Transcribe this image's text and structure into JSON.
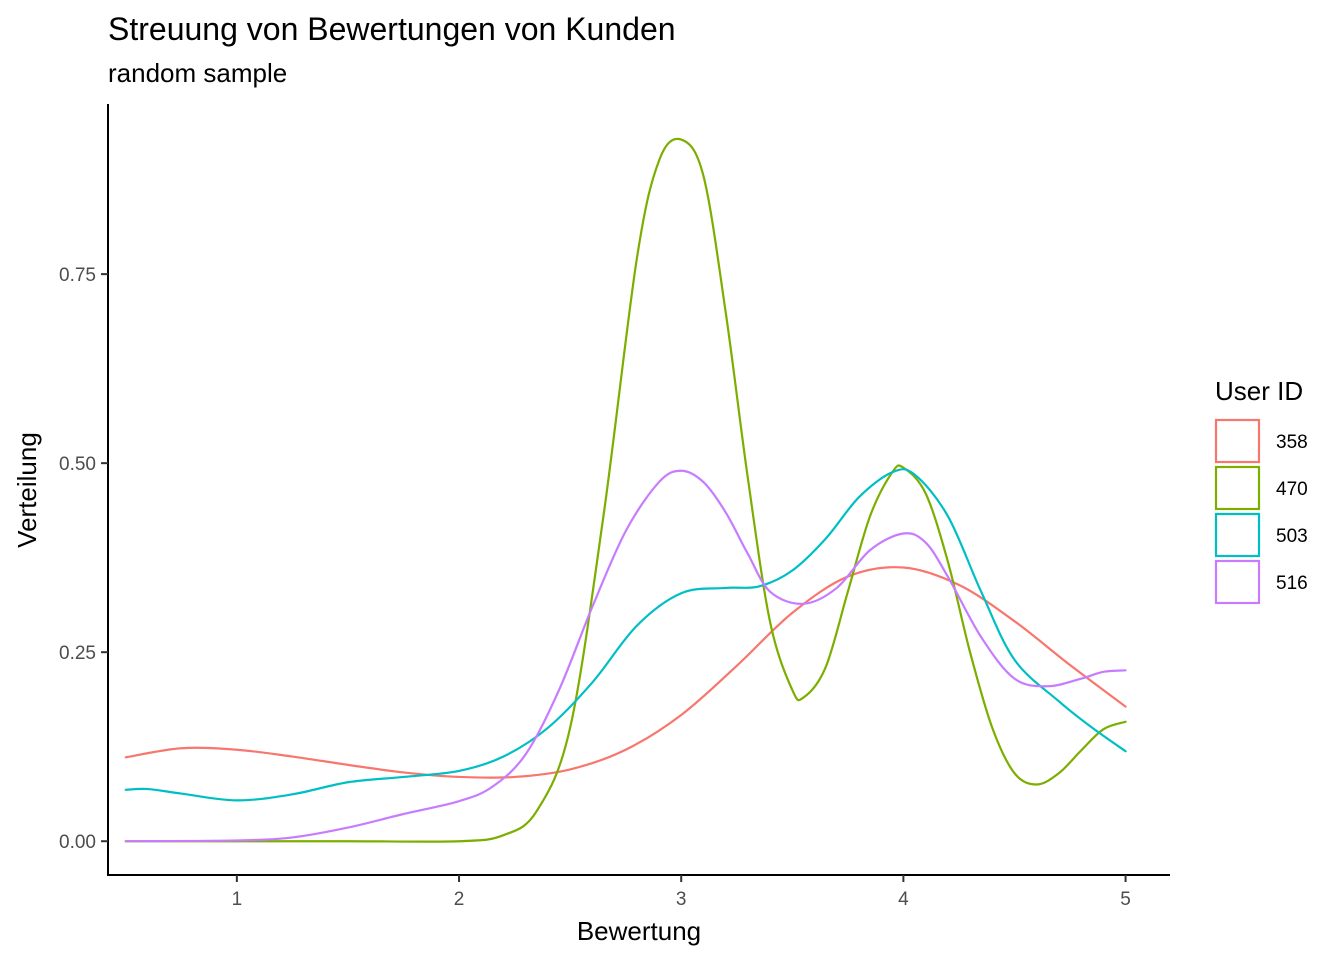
{
  "chart_data": {
    "type": "line",
    "title": "Streuung von Bewertungen von Kunden",
    "subtitle": "random sample",
    "xlabel": "Bewertung",
    "ylabel": "Verteilung",
    "xlim": [
      0.42,
      5.2
    ],
    "ylim": [
      -0.046,
      0.975
    ],
    "x_ticks": [
      1,
      2,
      3,
      4,
      5
    ],
    "x_tick_labels": [
      "1",
      "2",
      "3",
      "4",
      "5"
    ],
    "y_ticks": [
      0,
      0.25,
      0.5,
      0.75
    ],
    "y_tick_labels": [
      "0.00",
      "0.25",
      "0.50",
      "0.75"
    ],
    "grid": false,
    "legend": {
      "title": "User ID",
      "position": "right"
    },
    "series": [
      {
        "name": "358",
        "color": "#F8766D",
        "points": [
          [
            0.5,
            0.111
          ],
          [
            0.75,
            0.123
          ],
          [
            1.0,
            0.121
          ],
          [
            1.25,
            0.112
          ],
          [
            1.5,
            0.101
          ],
          [
            1.75,
            0.091
          ],
          [
            2.0,
            0.085
          ],
          [
            2.25,
            0.085
          ],
          [
            2.5,
            0.095
          ],
          [
            2.75,
            0.121
          ],
          [
            3.0,
            0.167
          ],
          [
            3.25,
            0.232
          ],
          [
            3.5,
            0.302
          ],
          [
            3.75,
            0.35
          ],
          [
            4.0,
            0.362
          ],
          [
            4.25,
            0.339
          ],
          [
            4.5,
            0.291
          ],
          [
            4.75,
            0.233
          ],
          [
            5.0,
            0.178
          ]
        ]
      },
      {
        "name": "470",
        "color": "#7CAE00",
        "points": [
          [
            0.5,
            0.0
          ],
          [
            1.0,
            0.0
          ],
          [
            1.5,
            0.0
          ],
          [
            2.0,
            0.0
          ],
          [
            2.2,
            0.008
          ],
          [
            2.35,
            0.04
          ],
          [
            2.5,
            0.15
          ],
          [
            2.65,
            0.43
          ],
          [
            2.8,
            0.77
          ],
          [
            2.9,
            0.9
          ],
          [
            3.0,
            0.928
          ],
          [
            3.1,
            0.88
          ],
          [
            3.2,
            0.7
          ],
          [
            3.3,
            0.48
          ],
          [
            3.4,
            0.29
          ],
          [
            3.5,
            0.2
          ],
          [
            3.55,
            0.19
          ],
          [
            3.65,
            0.23
          ],
          [
            3.75,
            0.33
          ],
          [
            3.85,
            0.43
          ],
          [
            3.95,
            0.488
          ],
          [
            4.0,
            0.494
          ],
          [
            4.1,
            0.46
          ],
          [
            4.2,
            0.37
          ],
          [
            4.3,
            0.25
          ],
          [
            4.4,
            0.15
          ],
          [
            4.5,
            0.09
          ],
          [
            4.6,
            0.075
          ],
          [
            4.7,
            0.09
          ],
          [
            4.8,
            0.12
          ],
          [
            4.9,
            0.148
          ],
          [
            5.0,
            0.158
          ]
        ]
      },
      {
        "name": "503",
        "color": "#00BFC4",
        "points": [
          [
            0.5,
            0.068
          ],
          [
            0.6,
            0.069
          ],
          [
            0.75,
            0.063
          ],
          [
            1.0,
            0.054
          ],
          [
            1.25,
            0.062
          ],
          [
            1.5,
            0.078
          ],
          [
            1.75,
            0.085
          ],
          [
            2.0,
            0.093
          ],
          [
            2.2,
            0.112
          ],
          [
            2.4,
            0.15
          ],
          [
            2.6,
            0.21
          ],
          [
            2.8,
            0.285
          ],
          [
            3.0,
            0.328
          ],
          [
            3.2,
            0.335
          ],
          [
            3.35,
            0.337
          ],
          [
            3.5,
            0.358
          ],
          [
            3.65,
            0.4
          ],
          [
            3.8,
            0.455
          ],
          [
            3.95,
            0.488
          ],
          [
            4.05,
            0.485
          ],
          [
            4.2,
            0.43
          ],
          [
            4.35,
            0.33
          ],
          [
            4.5,
            0.24
          ],
          [
            4.7,
            0.185
          ],
          [
            4.85,
            0.15
          ],
          [
            5.0,
            0.119
          ]
        ]
      },
      {
        "name": "516",
        "color": "#C77CFF",
        "points": [
          [
            0.5,
            0.0
          ],
          [
            1.0,
            0.001
          ],
          [
            1.25,
            0.005
          ],
          [
            1.5,
            0.018
          ],
          [
            1.75,
            0.036
          ],
          [
            2.0,
            0.053
          ],
          [
            2.15,
            0.072
          ],
          [
            2.3,
            0.115
          ],
          [
            2.45,
            0.2
          ],
          [
            2.6,
            0.31
          ],
          [
            2.75,
            0.41
          ],
          [
            2.9,
            0.475
          ],
          [
            3.0,
            0.49
          ],
          [
            3.1,
            0.475
          ],
          [
            3.2,
            0.435
          ],
          [
            3.3,
            0.38
          ],
          [
            3.4,
            0.33
          ],
          [
            3.55,
            0.314
          ],
          [
            3.7,
            0.335
          ],
          [
            3.85,
            0.385
          ],
          [
            4.0,
            0.407
          ],
          [
            4.1,
            0.395
          ],
          [
            4.2,
            0.35
          ],
          [
            4.35,
            0.27
          ],
          [
            4.5,
            0.215
          ],
          [
            4.65,
            0.205
          ],
          [
            4.8,
            0.215
          ],
          [
            4.9,
            0.224
          ],
          [
            5.0,
            0.226
          ]
        ]
      }
    ]
  }
}
